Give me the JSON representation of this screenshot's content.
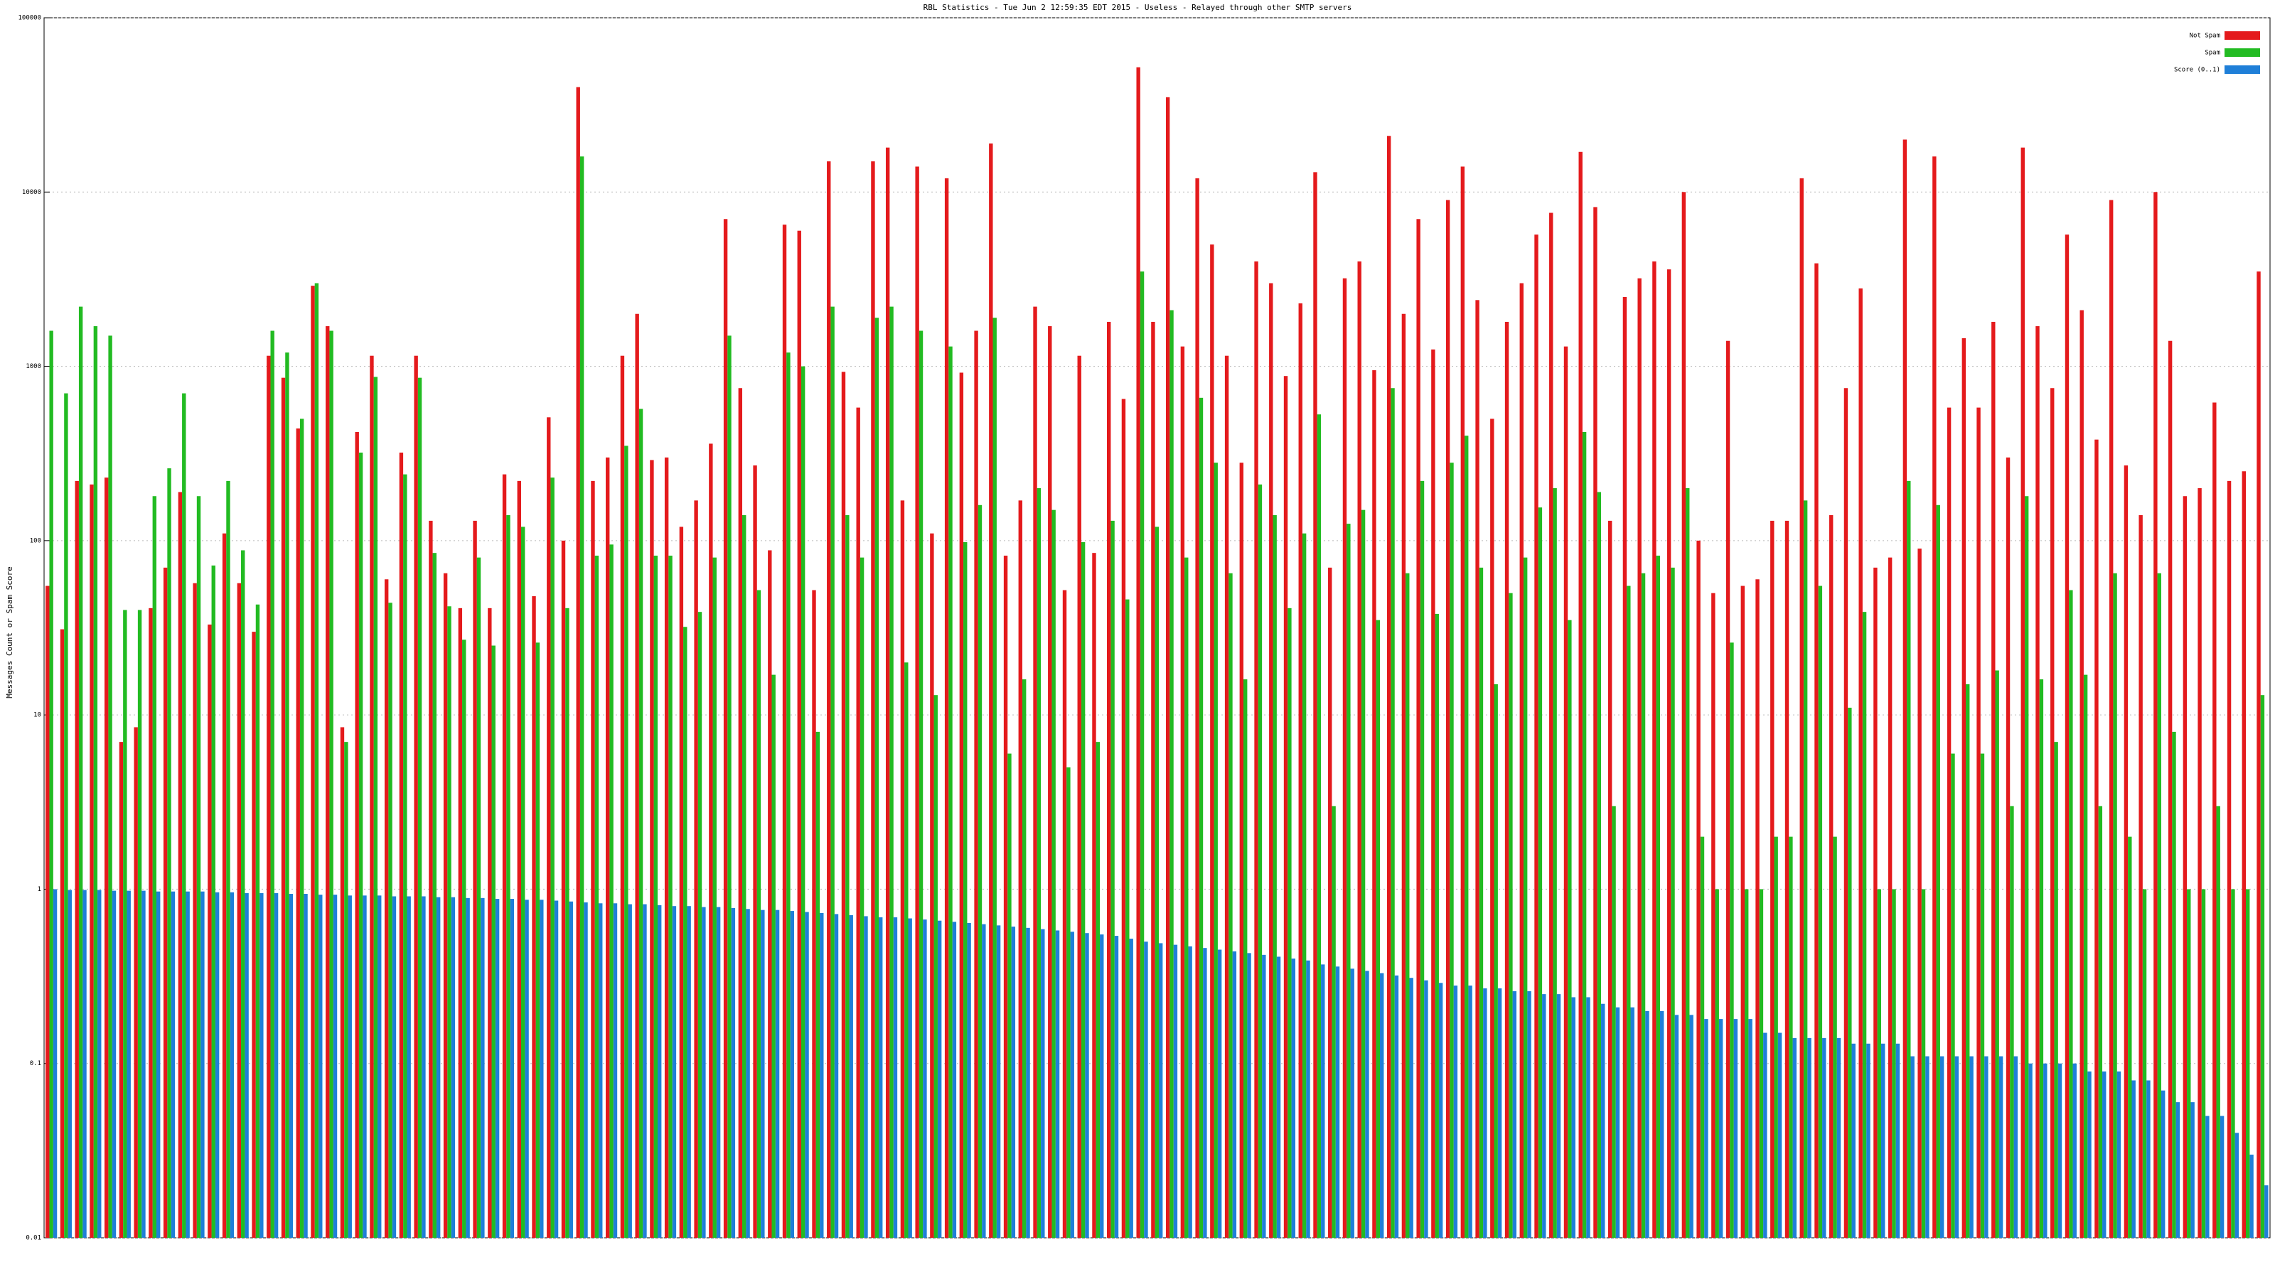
{
  "chart_data": {
    "type": "bar",
    "title": "RBL Statistics - Tue Jun  2 12:59:35 EDT 2015 - Useless - Relayed through other SMTP servers",
    "y_label": "Messages Count or Spam Score",
    "log_scale": true,
    "grid": true,
    "legend": "top-right",
    "ylim": [
      0.01,
      100000
    ],
    "yticks": [
      0.01,
      0.1,
      1,
      10,
      100,
      1000,
      10000,
      100000
    ],
    "categories": [
      null,
      null,
      null,
      null,
      null,
      null,
      null,
      null,
      null,
      null,
      null,
      null,
      null,
      null,
      null,
      null,
      null,
      null,
      null,
      null,
      null,
      null,
      null,
      null,
      null,
      null,
      null,
      null,
      null,
      null,
      null,
      null,
      null,
      null,
      null,
      null,
      null,
      null,
      null,
      null,
      null,
      null,
      null,
      null,
      null,
      null,
      null,
      null,
      null,
      null,
      null,
      null,
      null,
      null,
      null,
      null,
      null,
      null,
      null,
      null,
      null,
      null,
      null,
      null,
      null,
      null,
      null,
      null,
      null,
      null,
      null,
      null,
      null,
      null,
      null,
      null,
      null,
      null,
      null,
      null,
      null,
      null,
      null,
      null,
      null,
      null,
      null,
      null,
      null,
      null,
      null,
      null,
      null,
      null,
      null,
      null,
      null,
      null,
      null,
      null,
      null,
      null,
      null,
      null,
      null,
      null,
      null,
      null,
      null,
      null,
      null,
      null,
      null,
      null,
      null,
      null,
      null,
      null,
      null,
      null,
      null,
      null,
      null,
      null,
      null,
      null,
      null,
      null,
      null,
      null,
      null,
      null,
      null,
      null,
      null,
      null,
      null,
      null,
      null,
      null,
      null,
      null,
      null,
      null,
      null,
      null,
      null,
      null,
      null,
      null,
      null
    ],
    "series": [
      {
        "name": "Not Spam",
        "color": "#e41a1c",
        "values": [
          55,
          31,
          220,
          210,
          230,
          7,
          8.5,
          41,
          70,
          190,
          57,
          33,
          110,
          57,
          30,
          1150,
          860,
          440,
          2900,
          1700,
          8.5,
          420,
          1150,
          60,
          320,
          1150,
          130,
          65,
          41,
          130,
          41,
          240,
          220,
          48,
          510,
          100,
          40000,
          220,
          300,
          1150,
          2000,
          290,
          300,
          120,
          170,
          360,
          7000,
          750,
          270,
          88,
          6500,
          6000,
          52,
          15000,
          930,
          580,
          15000,
          18000,
          170,
          14000,
          110,
          12000,
          920,
          1600,
          19000,
          82,
          170,
          2200,
          1700,
          52,
          1150,
          85,
          1800,
          650,
          52000,
          1800,
          35000,
          1300,
          12000,
          5000,
          1150,
          280,
          4000,
          3000,
          880,
          2300,
          13000,
          70,
          3200,
          4000,
          950,
          21000,
          2000,
          7000,
          1250,
          9000,
          14000,
          2400,
          500,
          1800,
          3000,
          5700,
          7600,
          1300,
          17000,
          8200,
          130,
          2500,
          3200,
          4000,
          3600,
          10000,
          100,
          50,
          1400,
          55,
          60,
          130,
          130,
          12000,
          3900,
          140,
          750,
          2800,
          70,
          80,
          20000,
          90,
          16000,
          580,
          1450,
          580,
          1800,
          300,
          18000,
          1700,
          750,
          5700,
          2100,
          380,
          9000,
          270,
          140,
          10000,
          1400,
          180,
          200,
          620,
          220,
          250,
          3500
        ]
      },
      {
        "name": "Spam",
        "color": "#22bb22",
        "values": [
          1600,
          700,
          2200,
          1700,
          1500,
          40,
          40,
          180,
          260,
          700,
          180,
          72,
          220,
          88,
          43,
          1600,
          1200,
          500,
          3000,
          1600,
          7,
          320,
          870,
          44,
          240,
          860,
          85,
          42,
          27,
          80,
          25,
          140,
          120,
          26,
          230,
          41,
          16000,
          82,
          95,
          350,
          570,
          82,
          82,
          32,
          39,
          80,
          1500,
          140,
          52,
          17,
          1200,
          1000,
          8,
          2200,
          140,
          80,
          1900,
          2200,
          20,
          1600,
          13,
          1300,
          98,
          160,
          1900,
          6,
          16,
          200,
          150,
          5,
          98,
          7,
          130,
          46,
          3500,
          120,
          2100,
          80,
          660,
          280,
          65,
          16,
          210,
          140,
          41,
          110,
          530,
          3,
          125,
          150,
          35,
          750,
          65,
          220,
          38,
          280,
          400,
          70,
          15,
          50,
          80,
          155,
          200,
          35,
          420,
          190,
          3,
          55,
          65,
          82,
          70,
          200,
          2,
          1,
          26,
          1,
          1,
          2,
          2,
          170,
          55,
          2,
          11,
          39,
          1,
          1,
          220,
          1,
          160,
          6,
          15,
          6,
          18,
          3,
          180,
          16,
          7,
          52,
          17,
          3,
          65,
          2,
          1,
          65,
          8,
          1,
          1,
          3,
          1,
          1,
          13
        ]
      },
      {
        "name": "Score (0..1)",
        "color": "#1f7fd8",
        "values": [
          1.0,
          0.99,
          0.99,
          0.99,
          0.98,
          0.98,
          0.98,
          0.97,
          0.97,
          0.97,
          0.97,
          0.96,
          0.96,
          0.95,
          0.95,
          0.95,
          0.94,
          0.94,
          0.93,
          0.93,
          0.92,
          0.92,
          0.92,
          0.91,
          0.91,
          0.91,
          0.9,
          0.9,
          0.89,
          0.89,
          0.88,
          0.88,
          0.87,
          0.87,
          0.86,
          0.85,
          0.84,
          0.83,
          0.83,
          0.82,
          0.82,
          0.81,
          0.8,
          0.8,
          0.79,
          0.79,
          0.78,
          0.77,
          0.76,
          0.76,
          0.75,
          0.74,
          0.73,
          0.72,
          0.71,
          0.7,
          0.69,
          0.69,
          0.68,
          0.67,
          0.66,
          0.65,
          0.64,
          0.63,
          0.62,
          0.61,
          0.6,
          0.59,
          0.58,
          0.57,
          0.56,
          0.55,
          0.54,
          0.52,
          0.5,
          0.49,
          0.48,
          0.47,
          0.46,
          0.45,
          0.44,
          0.43,
          0.42,
          0.41,
          0.4,
          0.39,
          0.37,
          0.36,
          0.35,
          0.34,
          0.33,
          0.32,
          0.31,
          0.3,
          0.29,
          0.28,
          0.28,
          0.27,
          0.27,
          0.26,
          0.26,
          0.25,
          0.25,
          0.24,
          0.24,
          0.22,
          0.21,
          0.21,
          0.2,
          0.2,
          0.19,
          0.19,
          0.18,
          0.18,
          0.18,
          0.18,
          0.15,
          0.15,
          0.14,
          0.14,
          0.14,
          0.14,
          0.13,
          0.13,
          0.13,
          0.13,
          0.11,
          0.11,
          0.11,
          0.11,
          0.11,
          0.11,
          0.11,
          0.11,
          0.1,
          0.1,
          0.1,
          0.1,
          0.09,
          0.09,
          0.09,
          0.08,
          0.08,
          0.07,
          0.06,
          0.06,
          0.05,
          0.05,
          0.04,
          0.03,
          0.02
        ]
      }
    ]
  }
}
